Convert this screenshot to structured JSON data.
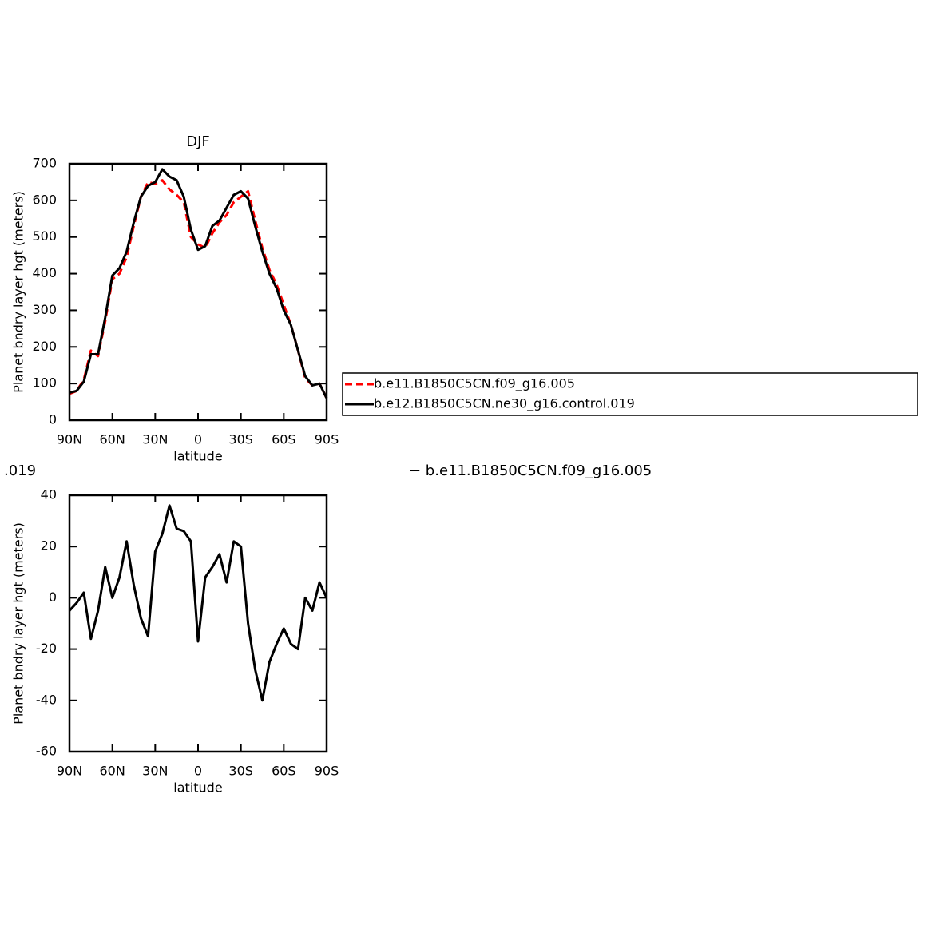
{
  "chart_data": [
    {
      "type": "line",
      "title": "DJF",
      "xlabel": "latitude",
      "ylabel": "Planet bndry layer hgt (meters)",
      "x": [
        90,
        85,
        80,
        75,
        70,
        65,
        60,
        55,
        50,
        45,
        40,
        35,
        30,
        25,
        20,
        15,
        10,
        5,
        0,
        -5,
        -10,
        -15,
        -20,
        -25,
        -30,
        -35,
        -40,
        -45,
        -50,
        -55,
        -60,
        -65,
        -70,
        -75,
        -80,
        -85,
        -90
      ],
      "series": [
        {
          "name": "b.e11.B1850C5CN.f09_g16.005",
          "color": "#ff0000",
          "dash": true,
          "values": [
            72,
            80,
            110,
            190,
            175,
            270,
            385,
            400,
            445,
            530,
            610,
            650,
            645,
            655,
            630,
            615,
            595,
            500,
            480,
            470,
            510,
            540,
            560,
            595,
            610,
            625,
            545,
            470,
            410,
            370,
            315,
            260,
            190,
            115,
            95,
            100,
            60
          ]
        },
        {
          "name": "b.e12.B1850C5CN.ne30_g16.control.019",
          "color": "#000000",
          "dash": false,
          "values": [
            75,
            80,
            105,
            180,
            180,
            280,
            395,
            415,
            460,
            540,
            610,
            640,
            650,
            685,
            665,
            655,
            610,
            520,
            465,
            475,
            530,
            545,
            580,
            615,
            625,
            605,
            530,
            460,
            400,
            360,
            300,
            260,
            190,
            120,
            95,
            100,
            60
          ]
        }
      ],
      "xlim": [
        90,
        -90
      ],
      "xticks": [
        {
          "value": 90,
          "label": "90N"
        },
        {
          "value": 60,
          "label": "60N"
        },
        {
          "value": 30,
          "label": "30N"
        },
        0,
        {
          "value": -30,
          "label": "30S"
        },
        {
          "value": -60,
          "label": "60S"
        },
        {
          "value": -90,
          "label": "90S"
        }
      ],
      "ylim": [
        0,
        700
      ],
      "yticks": [
        0,
        100,
        200,
        300,
        400,
        500,
        600,
        700
      ],
      "legend": "right"
    },
    {
      "type": "line",
      "title_left": ".019",
      "title_right": "− b.e11.B1850C5CN.f09_g16.005",
      "xlabel": "latitude",
      "ylabel": "Planet bndry layer hgt (meters)",
      "x": [
        90,
        85,
        80,
        75,
        70,
        65,
        60,
        55,
        50,
        45,
        40,
        35,
        30,
        25,
        20,
        15,
        10,
        5,
        0,
        -5,
        -10,
        -15,
        -20,
        -25,
        -30,
        -35,
        -40,
        -45,
        -50,
        -55,
        -60,
        -65,
        -70,
        -75,
        -80,
        -85,
        -90
      ],
      "series": [
        {
          "color": "#000000",
          "dash": false,
          "values": [
            -5,
            -2,
            2,
            -16,
            -5,
            12,
            0,
            8,
            22,
            5,
            -8,
            -15,
            18,
            25,
            36,
            27,
            26,
            22,
            -17,
            8,
            12,
            17,
            6,
            22,
            20,
            -10,
            -28,
            -40,
            -25,
            -18,
            -12,
            -18,
            -20,
            0,
            -5,
            6,
            0
          ]
        }
      ],
      "xlim": [
        90,
        -90
      ],
      "xticks": [
        {
          "value": 90,
          "label": "90N"
        },
        {
          "value": 60,
          "label": "60N"
        },
        {
          "value": 30,
          "label": "30N"
        },
        0,
        {
          "value": -30,
          "label": "30S"
        },
        {
          "value": -60,
          "label": "60S"
        },
        {
          "value": -90,
          "label": "90S"
        }
      ],
      "ylim": [
        -60,
        40
      ],
      "yticks": [
        -60,
        -40,
        -20,
        0,
        20,
        40
      ]
    }
  ]
}
